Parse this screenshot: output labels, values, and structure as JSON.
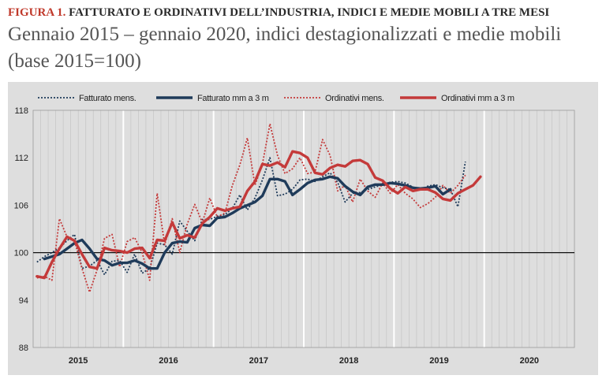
{
  "header": {
    "figure_label": "FIGURA 1.",
    "figure_title": "FATTURATO E ORDINATIVI DELL’INDUSTRIA, INDICI E MEDIE MOBILI A TRE MESI",
    "subtitle_line1": "Gennaio 2015 – gennaio 2020, indici destagionalizzati e medie mobili",
    "subtitle_line2": "(base 2015=100)"
  },
  "colors": {
    "fatturato": "#1f3b5a",
    "ordinativi": "#c43a3a",
    "panel_bg": "#dedede",
    "baseline": "#111111",
    "year_separator": "#ffffff"
  },
  "chart_data": {
    "type": "line",
    "title": "",
    "xlabel": "",
    "ylabel": "",
    "ylim": [
      88,
      118
    ],
    "yticks": [
      88,
      94,
      100,
      106,
      112,
      118
    ],
    "x_range": [
      "2015-01",
      "2020-12"
    ],
    "x_tick_labels": [
      "2015",
      "2016",
      "2017",
      "2018",
      "2019",
      "2020"
    ],
    "reference_line": 100,
    "grid": "vertical, one line per month; year boundaries in white",
    "legend_position": "top",
    "x": [
      "2015-01",
      "2015-02",
      "2015-03",
      "2015-04",
      "2015-05",
      "2015-06",
      "2015-07",
      "2015-08",
      "2015-09",
      "2015-10",
      "2015-11",
      "2015-12",
      "2016-01",
      "2016-02",
      "2016-03",
      "2016-04",
      "2016-05",
      "2016-06",
      "2016-07",
      "2016-08",
      "2016-09",
      "2016-10",
      "2016-11",
      "2016-12",
      "2017-01",
      "2017-02",
      "2017-03",
      "2017-04",
      "2017-05",
      "2017-06",
      "2017-07",
      "2017-08",
      "2017-09",
      "2017-10",
      "2017-11",
      "2017-12",
      "2018-01",
      "2018-02",
      "2018-03",
      "2018-04",
      "2018-05",
      "2018-06",
      "2018-07",
      "2018-08",
      "2018-09",
      "2018-10",
      "2018-11",
      "2018-12",
      "2019-01",
      "2019-02",
      "2019-03",
      "2019-04",
      "2019-05",
      "2019-06",
      "2019-07",
      "2019-08",
      "2019-09",
      "2019-10",
      "2019-11",
      "2019-12",
      "2020-01"
    ],
    "series": [
      {
        "name": "Fatturato mens.",
        "style": "dotted",
        "color": "#1f3b5a",
        "values": [
          98.8,
          99.5,
          100.0,
          100.6,
          101.5,
          102.3,
          98.0,
          98.3,
          99.0,
          97.2,
          98.9,
          99.0,
          97.5,
          99.8,
          97.4,
          98.0,
          101.2,
          101.0,
          99.8,
          104.0,
          102.7,
          101.5,
          104.2,
          104.2,
          104.6,
          104.8,
          105.6,
          107.3,
          105.4,
          106.9,
          109.2,
          112.0,
          107.2,
          107.4,
          108.0,
          109.2,
          109.3,
          109.0,
          109.6,
          110.1,
          108.9,
          106.4,
          107.5,
          107.6,
          108.0,
          108.3,
          108.6,
          108.9,
          109.0,
          108.8,
          108.3,
          107.9,
          108.4,
          108.6,
          108.2,
          108.0,
          105.8,
          111.5,
          null,
          null,
          null
        ]
      },
      {
        "name": "Fatturato mm a 3 m",
        "style": "solid",
        "color": "#1f3b5a",
        "values": [
          null,
          99.2,
          99.5,
          99.8,
          100.5,
          101.2,
          101.6,
          100.5,
          99.2,
          99.0,
          98.4,
          98.7,
          98.7,
          99.0,
          98.6,
          98.0,
          98.0,
          100.0,
          101.2,
          101.4,
          101.3,
          103.1,
          103.5,
          103.4,
          104.4,
          104.5,
          105.0,
          105.6,
          106.0,
          106.4,
          107.2,
          109.3,
          109.3,
          109.0,
          107.3,
          108.0,
          108.8,
          109.2,
          109.3,
          109.6,
          109.4,
          108.4,
          107.7,
          107.3,
          108.3,
          108.6,
          108.6,
          108.8,
          108.7,
          108.5,
          108.2,
          108.1,
          108.2,
          108.4,
          107.4,
          108.0,
          null,
          null,
          null,
          null,
          null
        ]
      },
      {
        "name": "Ordinativi mens.",
        "style": "dotted",
        "color": "#c43a3a",
        "values": [
          96.8,
          97.0,
          96.5,
          104.3,
          102.0,
          101.5,
          98.0,
          95.0,
          97.8,
          101.8,
          102.3,
          98.2,
          101.4,
          101.9,
          100.0,
          96.5,
          107.5,
          101.0,
          104.3,
          100.0,
          103.6,
          106.1,
          103.8,
          106.9,
          104.5,
          105.0,
          108.5,
          111.1,
          114.5,
          108.5,
          111.2,
          116.3,
          112.3,
          110.0,
          110.6,
          112.0,
          110.0,
          110.2,
          114.3,
          112.3,
          107.8,
          108.5,
          106.4,
          109.3,
          107.8,
          107.0,
          108.8,
          107.5,
          108.6,
          107.5,
          106.8,
          105.7,
          106.2,
          107.0,
          108.5,
          107.5,
          108.5,
          109.8,
          null,
          null,
          null
        ]
      },
      {
        "name": "Ordinativi mm a 3 m",
        "style": "solid",
        "color": "#c43a3a",
        "values": [
          97.0,
          96.8,
          98.8,
          100.5,
          102.0,
          101.5,
          99.8,
          98.2,
          98.0,
          100.6,
          100.3,
          100.2,
          100.0,
          100.5,
          100.6,
          99.3,
          101.6,
          101.5,
          103.8,
          101.8,
          102.2,
          101.9,
          103.7,
          104.5,
          105.6,
          105.3,
          105.6,
          105.8,
          107.8,
          109.0,
          111.2,
          111.0,
          111.4,
          110.8,
          112.8,
          112.6,
          112.0,
          110.1,
          109.9,
          110.7,
          111.1,
          110.9,
          111.6,
          111.7,
          111.2,
          109.5,
          109.1,
          108.1,
          107.5,
          108.3,
          107.8,
          108.0,
          108.0,
          107.6,
          106.8,
          106.6,
          107.5,
          108.0,
          108.5,
          109.6,
          null
        ]
      }
    ]
  }
}
